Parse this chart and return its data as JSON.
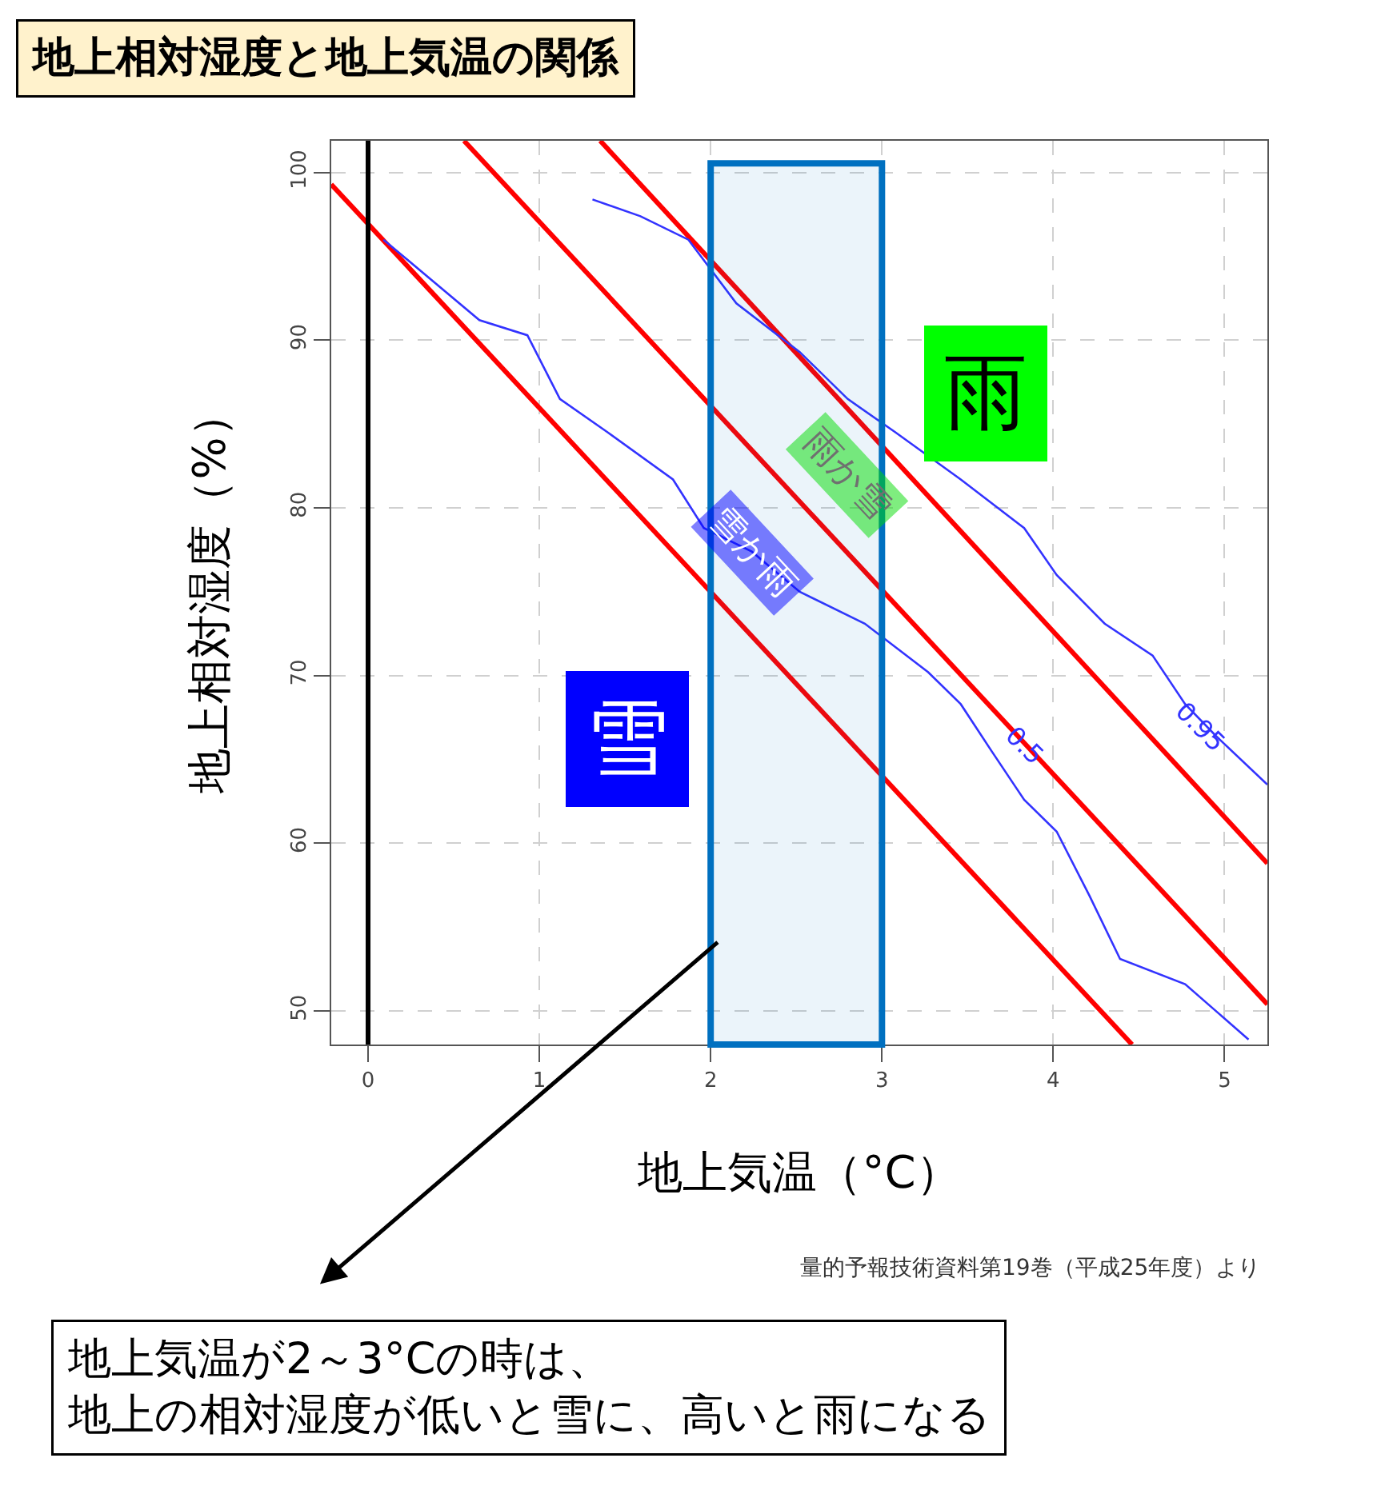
{
  "chart_data": {
    "type": "line",
    "title": "地上相対湿度と地上気温の関係",
    "xlabel": "地上気温（°C）",
    "ylabel": "地上相対湿度（%）",
    "series": [
      {
        "color": "#ff0000",
        "x": [
          -0.215,
          4.46
        ],
        "values": [
          99.3,
          48.0
        ]
      },
      {
        "color": "#ff0000",
        "x": [
          0.56,
          5.25
        ],
        "values": [
          101.9,
          50.4
        ]
      },
      {
        "color": "#ff0000",
        "x": [
          1.355,
          5.25
        ],
        "values": [
          101.9,
          58.8
        ]
      },
      {
        "color": "#3333ff",
        "x": [
          1.31,
          1.59,
          1.87,
          2.15,
          2.52,
          2.8,
          3.08,
          3.46,
          3.83,
          4.02,
          4.3,
          4.58,
          4.77,
          4.95,
          5.25
        ],
        "values": [
          98.4,
          97.4,
          96.0,
          92.2,
          89.3,
          86.5,
          84.5,
          81.7,
          78.8,
          76.0,
          73.1,
          71.2,
          68.3,
          66.4,
          63.5
        ]
      },
      {
        "color": "#3333ff",
        "x": [
          0.09,
          0.37,
          0.65,
          0.93,
          1.12,
          1.4,
          1.78,
          1.96,
          2.24,
          2.52,
          2.9,
          3.27,
          3.46,
          3.64,
          3.83,
          4.02,
          4.21,
          4.39,
          4.77,
          5.14
        ],
        "values": [
          96.0,
          93.6,
          91.2,
          90.3,
          86.5,
          84.5,
          81.7,
          78.8,
          77.4,
          75.0,
          73.1,
          70.2,
          68.3,
          65.5,
          62.6,
          60.7,
          56.9,
          53.1,
          51.6,
          48.3
        ]
      }
    ],
    "xlim": [
      -0.215,
      5.25
    ],
    "ylim": [
      48.0,
      101.9
    ],
    "xticks": [
      0,
      1,
      2,
      3,
      4,
      5
    ],
    "yticks": [
      50,
      60,
      70,
      80,
      90,
      100
    ],
    "grid": true,
    "ref_lines": [
      {
        "axis": "x",
        "value": 0,
        "color": "#000000"
      }
    ],
    "bands": [
      {
        "axis": "x",
        "from": 2,
        "to": 3,
        "color": "#0070c0"
      }
    ],
    "annotations": [
      "雨",
      "雪",
      "雨か雪",
      "雪か雨",
      {
        "text": "0.95",
        "x": 4.86,
        "y": 66.9
      },
      {
        "text": "0.5",
        "x": 3.83,
        "y": 65.9
      },
      "量的予報技術資料第19巻（平成25年度）より",
      "地上気温が2～3°Cの時は、",
      "地上の相対湿度が低いと雪に、高いと雨になる"
    ]
  }
}
